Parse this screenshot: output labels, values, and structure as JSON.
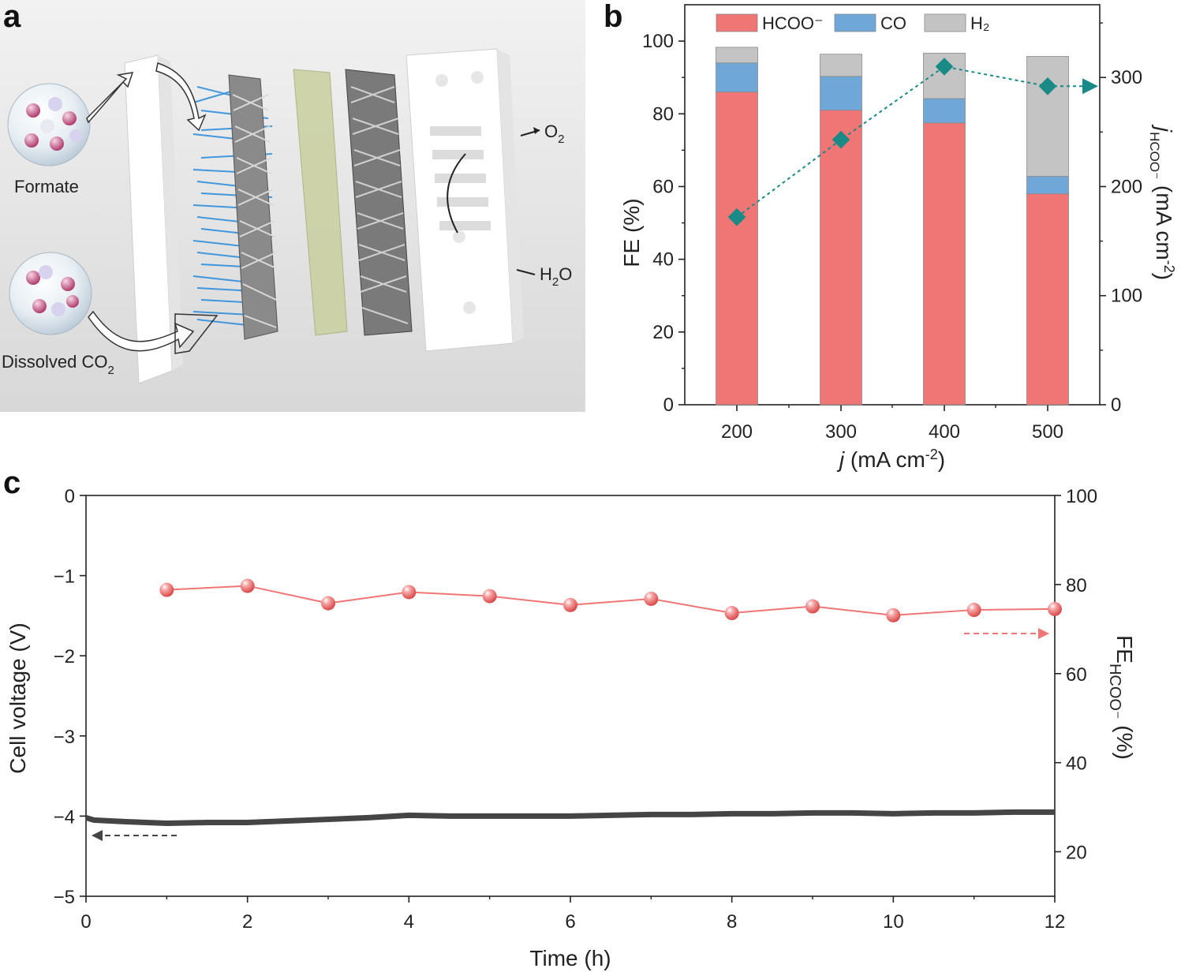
{
  "panel_labels": {
    "a": "a",
    "b": "b",
    "c": "c"
  },
  "illustration": {
    "formate": "Formate",
    "dissolved_co2_main": "Dissolved CO",
    "dissolved_co2_sub": "2",
    "o2_main": "O",
    "o2_sub": "2",
    "h2o_h": "H",
    "h2o_sub": "2",
    "h2o_o": "O"
  },
  "colors": {
    "hcoo": "#f07575",
    "co": "#6fa8d8",
    "h2": "#c4c4c4",
    "partial": "#1a8a86",
    "fe_line": "#f07575",
    "voltage": "#454545"
  },
  "chart_data": [
    {
      "type": "bar",
      "stacked": true,
      "title": "",
      "categories": [
        "200",
        "300",
        "400",
        "500"
      ],
      "series": [
        {
          "name": "HCOO⁻",
          "values": [
            86,
            81,
            77.5,
            58
          ]
        },
        {
          "name": "CO",
          "values": [
            8,
            9.3,
            6.7,
            4.8
          ]
        },
        {
          "name": "H₂",
          "values": [
            4.3,
            6.1,
            12.5,
            33
          ]
        }
      ],
      "ylim": [
        0,
        110
      ],
      "yticks": [
        "0",
        "20",
        "40",
        "60",
        "80",
        "100"
      ],
      "xlabel_main": "j",
      "xlabel_rest": " (mA cm",
      "xlabel_sup": "-2",
      "xlabel_end": ")",
      "ylabel": "FE (%)",
      "secondary_series": {
        "name": "jHCOO⁻",
        "type": "line",
        "x": [
          "200",
          "300",
          "400",
          "500"
        ],
        "values": [
          172,
          243,
          310,
          292
        ]
      },
      "y2lim": [
        0,
        366.7
      ],
      "y2ticks": [
        "0",
        "100",
        "200",
        "300"
      ],
      "y2label_main": "j",
      "y2label_sub": "HCOO⁻",
      "y2label_rest": " (mA cm",
      "y2label_sup": "-2",
      "y2label_end": ")",
      "legend": "top"
    },
    {
      "type": "line",
      "title": "",
      "xlabel": "Time (h)",
      "xlim": [
        0,
        12
      ],
      "xticks": [
        "0",
        "2",
        "4",
        "6",
        "8",
        "10",
        "12"
      ],
      "ylabel": "Cell voltage (V)",
      "ylim": [
        -5,
        0
      ],
      "yticks": [
        "0",
        "−1",
        "−2",
        "−3",
        "−4",
        "−5"
      ],
      "series": [
        {
          "name": "Cell voltage",
          "x": [
            0,
            0.1,
            0.5,
            1,
            1.5,
            2,
            2.5,
            3,
            3.5,
            4,
            4.5,
            5,
            5.5,
            6,
            6.5,
            7,
            7.5,
            8,
            8.5,
            9,
            9.5,
            10,
            10.5,
            11,
            11.5,
            12
          ],
          "y": [
            -4.02,
            -4.05,
            -4.07,
            -4.09,
            -4.08,
            -4.08,
            -4.06,
            -4.04,
            -4.02,
            -3.99,
            -4.0,
            -4.0,
            -4.0,
            -4.0,
            -3.99,
            -3.98,
            -3.98,
            -3.97,
            -3.97,
            -3.96,
            -3.96,
            -3.97,
            -3.96,
            -3.96,
            -3.95,
            -3.95
          ]
        }
      ],
      "y2label_main": "FE",
      "y2label_sub": "HCOO⁻",
      "y2label_rest": " (%)",
      "y2lim": [
        10,
        100
      ],
      "y2ticks": [
        "20",
        "40",
        "60",
        "80",
        "100"
      ],
      "secondary_series": {
        "name": "FE HCOO⁻",
        "x": [
          1,
          2,
          3,
          4,
          5,
          6,
          7,
          8,
          9,
          10,
          11,
          12
        ],
        "values": [
          78.8,
          79.7,
          75.8,
          78.3,
          77.4,
          75.4,
          76.8,
          73.6,
          75.1,
          73.1,
          74.3,
          74.5
        ]
      }
    }
  ]
}
